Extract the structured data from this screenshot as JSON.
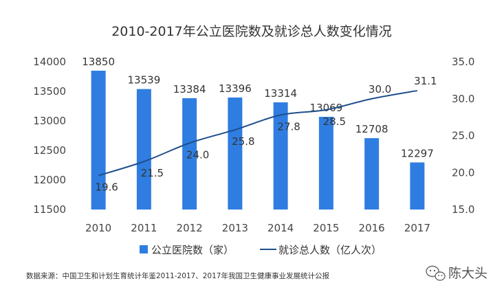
{
  "chart_data": {
    "type": "bar",
    "title": "2010-2017年公立医院数及就诊总人数变化情况",
    "categories": [
      "2010",
      "2011",
      "2012",
      "2013",
      "2014",
      "2015",
      "2016",
      "2017"
    ],
    "series": [
      {
        "name": "公立医院数（家）",
        "type": "bar",
        "axis": "left",
        "values": [
          13850,
          13539,
          13384,
          13396,
          13314,
          13069,
          12708,
          12297
        ],
        "labels": [
          "13850",
          "13539",
          "13384",
          "13396",
          "13314",
          "13069",
          "12708",
          "12297"
        ]
      },
      {
        "name": "就诊总人数（亿人次）",
        "type": "line",
        "axis": "right",
        "values": [
          19.6,
          21.5,
          24.0,
          25.8,
          27.8,
          28.5,
          30.0,
          31.1
        ],
        "labels": [
          "19.6",
          "21.5",
          "24.0",
          "25.8",
          "27.8",
          "28.5",
          "30.0",
          "31.1"
        ]
      }
    ],
    "left_axis": {
      "ylim": [
        11500,
        14000
      ],
      "ticks": [
        "11500",
        "12000",
        "12500",
        "13000",
        "13500",
        "14000"
      ]
    },
    "right_axis": {
      "ylim": [
        15,
        35
      ],
      "ticks": [
        "15.0",
        "20.0",
        "25.0",
        "30.0",
        "35.0"
      ]
    },
    "grid": false,
    "legend_position": "bottom",
    "colors": {
      "bar": "#2f7de1",
      "line": "#1f4e8c"
    }
  },
  "legend": {
    "bar_label": "公立医院数（家）",
    "line_label": "就诊总人数（亿人次）"
  },
  "source_note": "数据来源：中国卫生和计划生育统计年鉴2011-2017、2017年我国卫生健康事业发展统计公报",
  "watermark": {
    "text": "陈大头",
    "icon": "wechat-icon"
  }
}
